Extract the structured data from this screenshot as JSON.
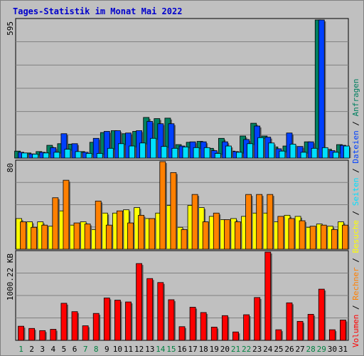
{
  "chart_data": {
    "type": "bar",
    "title": "Tages-Statistik im Monat Mai 2022",
    "colors": {
      "anfragen": "#008060",
      "dateien": "#0040ff",
      "seiten": "#00e0ff",
      "besuche": "#ffff00",
      "rechner": "#ff8000",
      "volumen": "#ff0000",
      "background": "#c0c0c0",
      "weekend_label": "#008040",
      "weekday_label": "#000000",
      "title": "#0000cc"
    },
    "categories": [
      "1",
      "2",
      "3",
      "4",
      "5",
      "6",
      "7",
      "8",
      "9",
      "10",
      "11",
      "12",
      "13",
      "14",
      "15",
      "16",
      "17",
      "18",
      "19",
      "20",
      "21",
      "22",
      "23",
      "24",
      "25",
      "26",
      "27",
      "28",
      "29",
      "30",
      "31"
    ],
    "weekend_days": [
      "1",
      "7",
      "8",
      "14",
      "15",
      "21",
      "22",
      "28",
      "29"
    ],
    "panels": [
      {
        "ymax_label": "595",
        "ylim": [
          0,
          595
        ],
        "series": [
          {
            "name": "Anfragen",
            "values": [
              30,
              22,
              28,
              55,
              62,
              60,
              28,
              68,
              110,
              118,
              105,
              115,
              175,
              170,
              172,
              58,
              68,
              72,
              42,
              85,
              30,
              95,
              150,
              95,
              48,
              52,
              42,
              70,
              595,
              38,
              58
            ]
          },
          {
            "name": "Dateien",
            "values": [
              25,
              18,
              25,
              45,
              105,
              62,
              25,
              85,
              115,
              118,
              108,
              118,
              158,
              148,
              148,
              52,
              70,
              70,
              32,
              70,
              28,
              80,
              138,
              90,
              40,
              108,
              50,
              70,
              595,
              32,
              55
            ]
          },
          {
            "name": "Seiten",
            "values": [
              22,
              17,
              22,
              25,
              38,
              28,
              20,
              20,
              42,
              62,
              52,
              65,
              85,
              50,
              42,
              48,
              45,
              45,
              20,
              52,
              25,
              62,
              88,
              65,
              30,
              60,
              25,
              42,
              45,
              25,
              52
            ]
          }
        ]
      },
      {
        "ymax_label": "80",
        "ylim": [
          0,
          80
        ],
        "series": [
          {
            "name": "Besuche",
            "values": [
              28,
              25,
              25,
              21,
              35,
              22,
              25,
              18,
              33,
              33,
              36,
              38,
              28,
              33,
              40,
              20,
              40,
              38,
              30,
              27,
              28,
              30,
              33,
              33,
              25,
              31,
              30,
              20,
              23,
              21,
              25
            ]
          },
          {
            "name": "Rechner",
            "values": [
              25,
              20,
              22,
              47,
              63,
              24,
              23,
              44,
              22,
              35,
              24,
              31,
              28,
              80,
              70,
              18,
              50,
              25,
              33,
              27,
              25,
              50,
              50,
              50,
              30,
              28,
              26,
              21,
              22,
              18,
              22
            ]
          }
        ]
      },
      {
        "ymax_label": "1000.22 KB",
        "ylim": [
          0,
          1000.22
        ],
        "series": [
          {
            "name": "Volumen",
            "values": [
              160,
              135,
              110,
              125,
              420,
              325,
              165,
              305,
              480,
              455,
              435,
              870,
              700,
              655,
              460,
              155,
              375,
              315,
              150,
              280,
              95,
              290,
              485,
              1000,
              120,
              425,
              215,
              295,
              580,
              120,
              230
            ]
          }
        ]
      }
    ],
    "legend": [
      "Anfragen",
      "Dateien",
      "Seiten",
      "Besuche",
      "Rechner",
      "Volumen"
    ],
    "grid": true
  }
}
